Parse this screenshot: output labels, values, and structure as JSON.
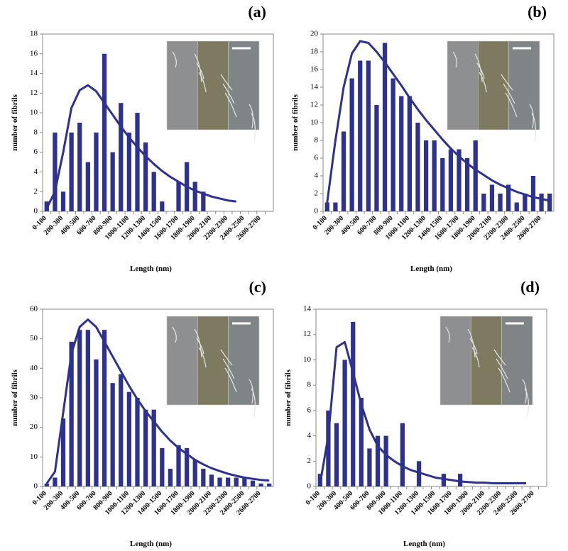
{
  "chart_data": [
    {
      "type": "bar",
      "label": "(a)",
      "x_label": "Length (nm)",
      "y_label": "number of fibrils",
      "categories": [
        "0-100",
        null,
        "200-300",
        null,
        "400-500",
        null,
        "600-700",
        null,
        "800-900",
        null,
        "1000-1100",
        null,
        "1200-1300",
        null,
        "1400-1500",
        null,
        "1600-1700",
        null,
        "1800-1900",
        null,
        "2000-2100",
        null,
        "2200-2300",
        null,
        "2400-2500",
        null,
        "2600-2700",
        null
      ],
      "series": [
        {
          "type": "bar",
          "color": "#2d3190",
          "values": [
            1,
            8,
            2,
            8,
            9,
            5,
            8,
            16,
            6,
            11,
            8,
            10,
            7,
            4,
            1,
            0,
            3,
            5,
            3,
            2,
            0,
            0,
            0,
            0,
            0,
            0,
            0,
            0
          ]
        },
        {
          "type": "line",
          "color": "#2d3190",
          "values": [
            0.3,
            2,
            6,
            10.5,
            12.3,
            12.8,
            12.2,
            11,
            9.8,
            8.6,
            7.5,
            6.5,
            5.6,
            4.8,
            4.1,
            3.5,
            3,
            2.5,
            2.1,
            1.8,
            1.5,
            1.3,
            1.1,
            1,
            null,
            null,
            null,
            null
          ]
        }
      ],
      "ylim": [
        0,
        18
      ],
      "yticks": [
        0,
        2,
        4,
        6,
        8,
        10,
        12,
        14,
        16,
        18
      ]
    },
    {
      "type": "bar",
      "label": "(b)",
      "x_label": "Length (nm)",
      "y_label": "number of fibrils",
      "categories": [
        "0-100",
        null,
        "200-300",
        null,
        "400-500",
        null,
        "600-700",
        null,
        "800-900",
        null,
        "1000-1100",
        null,
        "1200-1300",
        null,
        "1400-1500",
        null,
        "1600-1700",
        null,
        "1800-1900",
        null,
        "2000-2100",
        null,
        "2200-2300",
        null,
        "2400-2500",
        null,
        "2600-2700",
        null
      ],
      "series": [
        {
          "type": "bar",
          "color": "#2d3190",
          "values": [
            1,
            1,
            9,
            15,
            17,
            17,
            12,
            19,
            15,
            13,
            13,
            10,
            8,
            8,
            6,
            7,
            7,
            6,
            8,
            2,
            3,
            2,
            3,
            1,
            2,
            4,
            2,
            2
          ]
        },
        {
          "type": "line",
          "color": "#2d3190",
          "values": [
            1,
            8,
            14,
            17.8,
            19.2,
            19,
            18,
            16.8,
            15.5,
            14.2,
            12.8,
            11.5,
            10.3,
            9.2,
            8.1,
            7.1,
            6.2,
            5.4,
            4.7,
            4.1,
            3.5,
            3,
            2.6,
            2.2,
            1.9,
            1.6,
            1.4,
            1.2
          ]
        }
      ],
      "ylim": [
        0,
        20
      ],
      "yticks": [
        0,
        2,
        4,
        6,
        8,
        10,
        12,
        14,
        16,
        18,
        20
      ]
    },
    {
      "type": "bar",
      "label": "(c)",
      "x_label": "Length (nm)",
      "y_label": "number of fibrils",
      "categories": [
        "0-100",
        null,
        "200-300",
        null,
        "400-500",
        null,
        "600-700",
        null,
        "800-900",
        null,
        "1000-1100",
        null,
        "1200-1300",
        null,
        "1400-1500",
        null,
        "1600-1700",
        null,
        "1800-1900",
        null,
        "2000-2100",
        null,
        "2200-2300",
        null,
        "2400-2500",
        null,
        "2600-2700",
        null
      ],
      "series": [
        {
          "type": "bar",
          "color": "#2d3190",
          "values": [
            1,
            3,
            23,
            49,
            53,
            53,
            43,
            53,
            35,
            38,
            32,
            30,
            26,
            26,
            13,
            6,
            14,
            13,
            9,
            6,
            4,
            3,
            3,
            3,
            3,
            2,
            1,
            1
          ]
        },
        {
          "type": "line",
          "color": "#2d3190",
          "values": [
            1,
            5,
            25,
            45,
            54,
            56.5,
            54,
            49,
            44,
            39,
            34,
            29.5,
            25.5,
            22,
            18.5,
            15.5,
            13,
            11,
            9,
            7.5,
            6.2,
            5.2,
            4.3,
            3.6,
            3,
            2.6,
            2.2,
            2
          ]
        }
      ],
      "ylim": [
        0,
        60
      ],
      "yticks": [
        0,
        10,
        20,
        30,
        40,
        50,
        60
      ]
    },
    {
      "type": "bar",
      "label": "(d)",
      "x_label": "Length (nm)",
      "y_label": "number of fibrils",
      "categories": [
        "0-100",
        null,
        "200-300",
        null,
        "400-500",
        null,
        "600-700",
        null,
        "800-900",
        null,
        "1000-1100",
        null,
        "1200-1300",
        null,
        "1400-1500",
        null,
        "1600-1700",
        null,
        "1800-1900",
        null,
        "2000-2100",
        null,
        "2200-2300",
        null,
        "2400-2500",
        null,
        "2600-2700",
        null
      ],
      "series": [
        {
          "type": "bar",
          "color": "#2d3190",
          "values": [
            1,
            6,
            5,
            10,
            13,
            7,
            3,
            4,
            4,
            0,
            5,
            0,
            2,
            0,
            0,
            1,
            0,
            1,
            0,
            0,
            0,
            0,
            0,
            0,
            0,
            0,
            0,
            0
          ]
        },
        {
          "type": "line",
          "color": "#2d3190",
          "values": [
            0.2,
            4,
            11,
            11.4,
            9,
            6.5,
            4.5,
            3.2,
            2.5,
            2,
            1.6,
            1.3,
            1.1,
            0.9,
            0.7,
            0.6,
            0.5,
            0.4,
            0.35,
            0.3,
            0.3,
            0.25,
            0.25,
            0.25,
            0.25,
            0.25,
            null,
            null
          ]
        }
      ],
      "ylim": [
        0,
        14
      ],
      "yticks": [
        0,
        2,
        4,
        6,
        8,
        10,
        12,
        14
      ]
    }
  ]
}
